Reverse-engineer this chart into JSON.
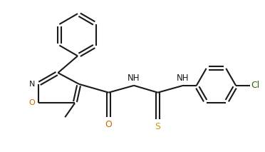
{
  "bg_color": "#ffffff",
  "line_color": "#1a1a1a",
  "atom_colors": {
    "N": "#1a1a1a",
    "O": "#cc6600",
    "S": "#cc9900",
    "Cl": "#336600",
    "C": "#1a1a1a"
  },
  "figsize": [
    3.72,
    2.13
  ],
  "dpi": 100
}
